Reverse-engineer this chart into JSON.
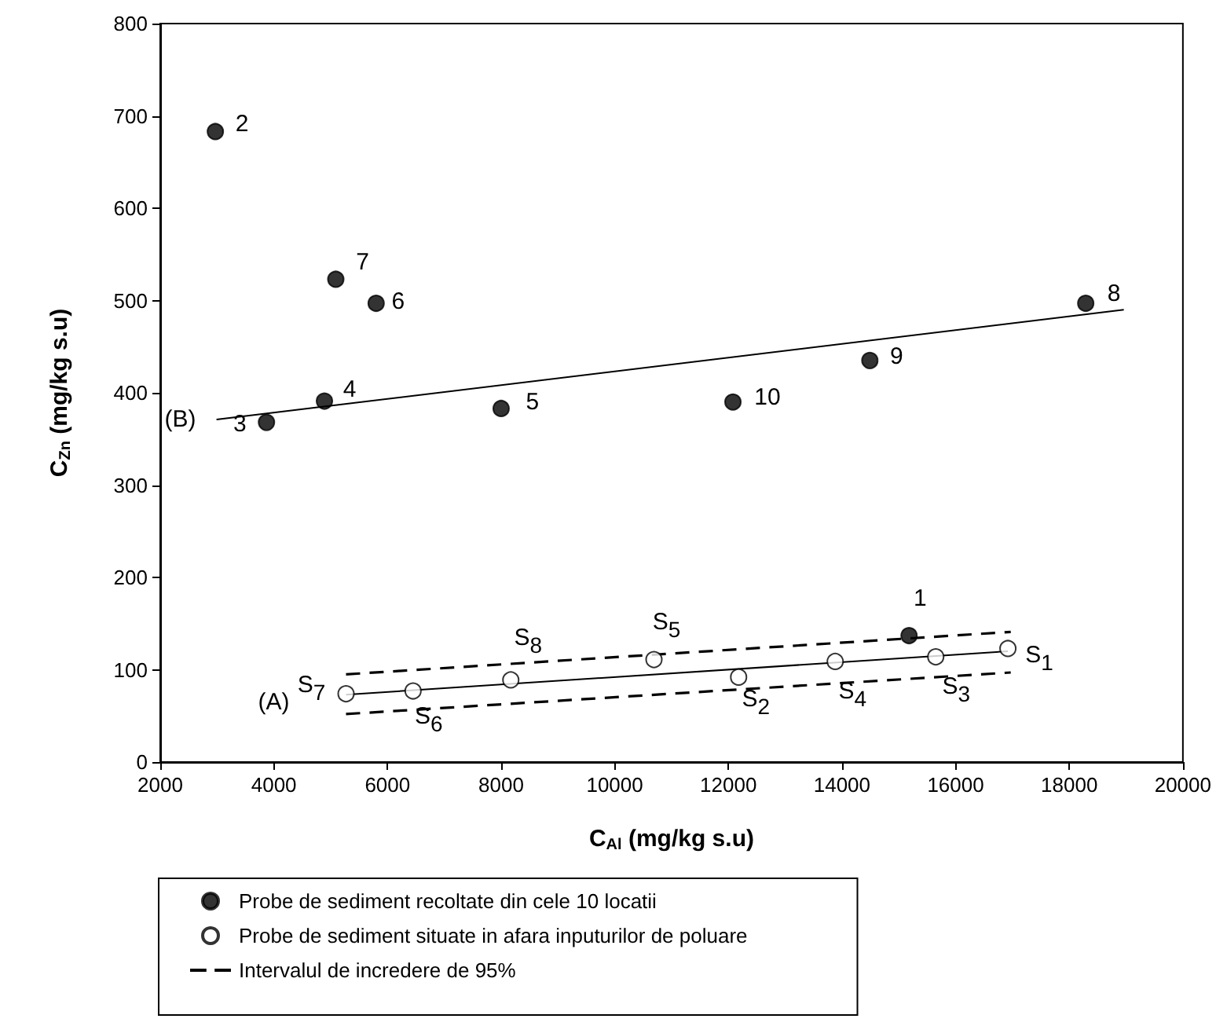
{
  "chart_data": {
    "type": "scatter",
    "xlabel": "C$_{Al}$ (mg/kg s.u)",
    "ylabel": "C$_{Zn}$ (mg/kg s.u)",
    "xlim": [
      2000,
      20000
    ],
    "xticks": [
      2000,
      4000,
      6000,
      8000,
      10000,
      12000,
      14000,
      16000,
      18000,
      20000
    ],
    "ylim": [
      0,
      800
    ],
    "yticks": [
      0,
      100,
      200,
      300,
      400,
      500,
      600,
      700,
      800
    ],
    "grid": false,
    "legend": "bottom",
    "series": [
      {
        "name": "Probe de sediment recoltate din cele 10 locatii",
        "color": "#000000",
        "marker": "circle",
        "x": [
          15180,
          2970,
          3870,
          4890,
          8000,
          5800,
          5090,
          18290,
          14490,
          12080
        ],
        "values": [
          137,
          683,
          368,
          391,
          383,
          497,
          523,
          497,
          435,
          390
        ]
      },
      {
        "name": "Probe de sediment situate in afara inputurilor de poluare",
        "color": "#ffffff",
        "marker": "circle",
        "x": [
          16920,
          12180,
          15650,
          13880,
          10690,
          6450,
          5270,
          8170
        ],
        "values": [
          123,
          92,
          114,
          109,
          111,
          77,
          74,
          89
        ]
      },
      {
        "type": "line",
        "color": "#000000",
        "marker": "none",
        "line_style": "solid",
        "x": [
          2990,
          18960
        ],
        "values": [
          371,
          490
        ]
      },
      {
        "type": "line",
        "color": "#000000",
        "marker": "none",
        "line_style": "solid",
        "x": [
          5270,
          16920
        ],
        "values": [
          73,
          120
        ]
      },
      {
        "type": "line",
        "name": "Intervalul de incredere de 95%",
        "color": "#000000",
        "marker": "none",
        "line_style": "dashed",
        "x": [
          5270,
          16970
        ],
        "values": [
          95,
          141
        ]
      },
      {
        "type": "line",
        "color": "#000000",
        "marker": "none",
        "line_style": "dashed",
        "x": [
          5270,
          16970
        ],
        "values": [
          52,
          97
        ]
      }
    ],
    "annotations": [
      {
        "text": "1",
        "x": 15180,
        "y": 137
      },
      {
        "text": "2",
        "x": 2970,
        "y": 683
      },
      {
        "text": "3",
        "x": 3870,
        "y": 368
      },
      {
        "text": "4",
        "x": 4890,
        "y": 391
      },
      {
        "text": "5",
        "x": 8000,
        "y": 383
      },
      {
        "text": "6",
        "x": 5800,
        "y": 497
      },
      {
        "text": "7",
        "x": 5090,
        "y": 523
      },
      {
        "text": "8",
        "x": 18290,
        "y": 497
      },
      {
        "text": "9",
        "x": 14490,
        "y": 435
      },
      {
        "text": "10",
        "x": 12080,
        "y": 390
      },
      {
        "text": "S$_{1}$",
        "x": 16920,
        "y": 123
      },
      {
        "text": "S$_{2}$",
        "x": 12180,
        "y": 92
      },
      {
        "text": "S$_{3}$",
        "x": 15650,
        "y": 114
      },
      {
        "text": "S$_{4}$",
        "x": 13880,
        "y": 109
      },
      {
        "text": "S$_{5}$",
        "x": 10690,
        "y": 111
      },
      {
        "text": "S$_{6}$",
        "x": 6450,
        "y": 77
      },
      {
        "text": "S$_{7}$",
        "x": 5270,
        "y": 74
      },
      {
        "text": "S$_{8}$",
        "x": 8170,
        "y": 89
      },
      {
        "text": "(A)",
        "x": 5270,
        "y": 73
      },
      {
        "text": "(B)",
        "x": 2990,
        "y": 371
      }
    ]
  }
}
